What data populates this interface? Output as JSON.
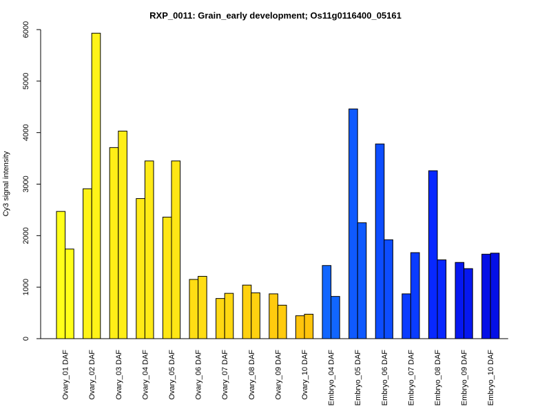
{
  "chart_data": {
    "type": "bar",
    "title": "RXP_0011: Grain_early development; Os11g0116400_05161",
    "xlabel": "",
    "ylabel": "Cy3 signal intensity",
    "ylim": [
      0,
      6000
    ],
    "yticks": [
      0,
      1000,
      2000,
      3000,
      4000,
      5000,
      6000
    ],
    "grid": false,
    "legend": "none",
    "categories": [
      "Ovary_01 DAF",
      "Ovary_02 DAF",
      "Ovary_03 DAF",
      "Ovary_04 DAF",
      "Ovary_05 DAF",
      "Ovary_06 DAF",
      "Ovary_07 DAF",
      "Ovary_08 DAF",
      "Ovary_09 DAF",
      "Ovary_10 DAF",
      "Embryo_04 DAF",
      "Embryo_05 DAF",
      "Embryo_06 DAF",
      "Embryo_07 DAF",
      "Embryo_08 DAF",
      "Embryo_09 DAF",
      "Embryo_10 DAF"
    ],
    "colors": [
      "#ffff1a",
      "#fff318",
      "#ffee17",
      "#ffea16",
      "#ffe615",
      "#ffdd14",
      "#ffd812",
      "#ffd110",
      "#ffcb0e",
      "#ffc40c",
      "#1166ff",
      "#0f5aff",
      "#0d4dff",
      "#0a3cff",
      "#0828ff",
      "#0618f0",
      "#0410e6"
    ],
    "series": [
      {
        "values": [
          2470,
          2910,
          3710,
          2720,
          2360,
          1150,
          780,
          1040,
          870,
          445,
          1420,
          4460,
          3780,
          870,
          3260,
          1480,
          1640
        ]
      },
      {
        "values": [
          1740,
          5930,
          4030,
          3450,
          3450,
          1210,
          880,
          890,
          650,
          475,
          820,
          2250,
          1920,
          1670,
          1530,
          1360,
          1660
        ]
      }
    ]
  }
}
